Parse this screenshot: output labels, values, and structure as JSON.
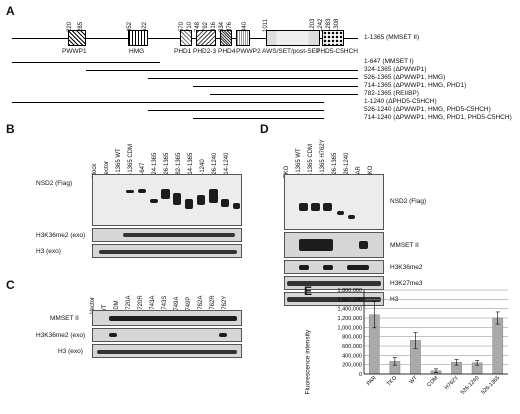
{
  "panel_a": {
    "letter": "A",
    "construct_full": "1-1365 (MMSET II)",
    "positions": [
      "220",
      "285",
      "452",
      "522",
      "670",
      "710",
      "748",
      "792",
      "816",
      "834",
      "876",
      "940",
      "1011",
      "1203",
      "1242",
      "1283",
      "1308"
    ],
    "domains": [
      "PWWP1",
      "HMG",
      "PHD1",
      "PHD2-3",
      "PHD4",
      "PWWP2",
      "AWS/SET/post-SET",
      "PHD5-C5HCH"
    ],
    "constructs": [
      "1-647 (MMSET I)",
      "324-1365 (ΔPWWP1)",
      "526-1365 (ΔPWWP1, HMG)",
      "714-1365 (ΔPWWP1, HMG, PHD1)",
      "782-1365 (REIIBP)",
      "1-1240 (ΔPHD5-C5HCH)",
      "526-1240 (ΔPWWP1, HMG, PHD5-C5HCH)",
      "714-1240 (ΔPWWP1, HMG, PHD1, PHD5-C5HCH)"
    ]
  },
  "panel_b": {
    "letter": "B",
    "lanes": [
      "Mock",
      "Vector",
      "1-1365 WT",
      "1-1365 CDM",
      "1-647",
      "324-1365",
      "526-1365",
      "782-1365",
      "714-1365",
      "1-1240",
      "526-1240",
      "714-1240"
    ],
    "rows": [
      "NSD2 (Flag)",
      "H3K36me2 (exo)",
      "H3 (exo)"
    ]
  },
  "panel_c": {
    "letter": "C",
    "lanes": [
      "Vector",
      "WT",
      "CDM",
      "C720A",
      "C720R",
      "C743A",
      "C743S",
      "L749A",
      "L749P",
      "H762A",
      "H762R",
      "H762Y"
    ],
    "rows": [
      "MMSET II",
      "H3K36me2 (exo)",
      "H3 (exo)"
    ]
  },
  "panel_d": {
    "letter": "D",
    "lanes": [
      "TKO",
      "1-1365 WT",
      "1-1365 CDM",
      "1-1365 H762Y",
      "526-1365",
      "526-1240",
      "PAR",
      "TKO"
    ],
    "rows": [
      "NSD2 (Flag)",
      "MMSET II",
      "H3K36me2",
      "H3K27me3",
      "H3"
    ]
  },
  "panel_e": {
    "letter": "E",
    "chart_data": {
      "type": "bar",
      "categories": [
        "PAR",
        "TKO",
        "WT",
        "CDM",
        "H762Y",
        "526-1240",
        "526-1365"
      ],
      "values": [
        1270000,
        270000,
        720000,
        70000,
        250000,
        240000,
        1200000
      ],
      "errors": [
        280000,
        80000,
        170000,
        40000,
        60000,
        50000,
        130000
      ],
      "ylabel": "Fluorescence intensity",
      "ylim": [
        0,
        1800000
      ],
      "yticks": [
        "0",
        "200,000",
        "400,000",
        "600,000",
        "800,000",
        "1,000,000",
        "1,200,000",
        "1,400,000",
        "1,600,000",
        "1,800,000"
      ],
      "bar_color": "#a9a9a9"
    }
  }
}
